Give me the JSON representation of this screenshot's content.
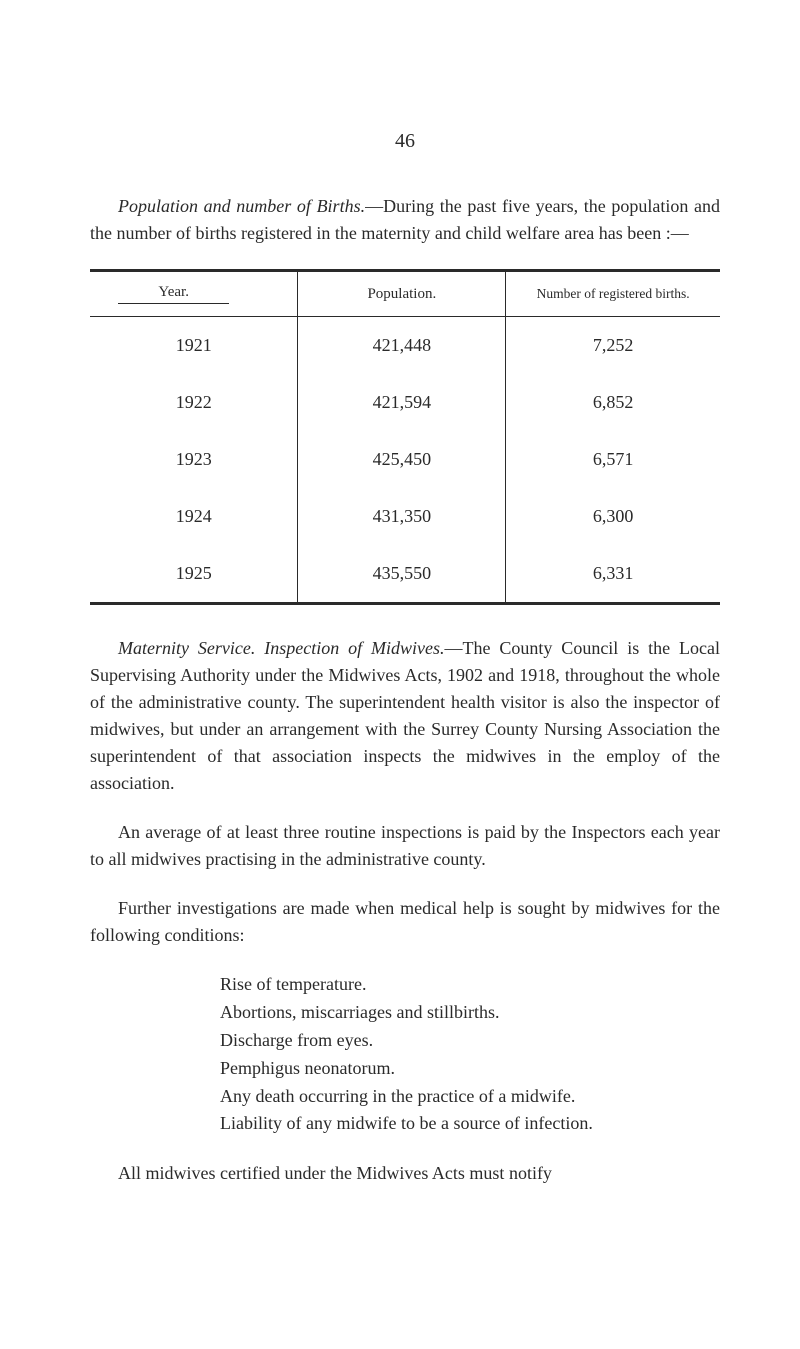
{
  "page_number": "46",
  "para1": {
    "lead_italic": "Population and number of Births.",
    "rest": "—During the past five years, the population and the number of births registered in the maternity and child welfare area has been :—"
  },
  "table": {
    "headers": {
      "year": "Year.",
      "population": "Population.",
      "births": "Number of registered births."
    },
    "rows": [
      {
        "year": "1921",
        "population": "421,448",
        "births": "7,252"
      },
      {
        "year": "1922",
        "population": "421,594",
        "births": "6,852"
      },
      {
        "year": "1923",
        "population": "425,450",
        "births": "6,571"
      },
      {
        "year": "1924",
        "population": "431,350",
        "births": "6,300"
      },
      {
        "year": "1925",
        "population": "435,550",
        "births": "6,331"
      }
    ]
  },
  "para2": {
    "lead_italic": "Maternity Service. Inspection of Midwives.",
    "rest": "—The County Council is the Local Supervising Authority under the Midwives Acts, 1902 and 1918, throughout the whole of the administrative county. The superintendent health visitor is also the inspector of midwives, but under an arrangement with the Surrey County Nursing Association the superintendent of that association inspects the midwives in the employ of the association."
  },
  "para3": "An average of at least three routine inspections is paid by the Inspectors each year to all midwives practising in the administrative county.",
  "para4": "Further investigations are made when medical help is sought by midwives for the following conditions:",
  "conditions": [
    "Rise of temperature.",
    "Abortions, miscarriages and stillbirths.",
    "Discharge from eyes.",
    "Pemphigus neonatorum.",
    "Any death occurring in the practice of a midwife.",
    "Liability of any midwife to be a source of infection."
  ],
  "para5": "All midwives certified under the Midwives Acts must notify"
}
